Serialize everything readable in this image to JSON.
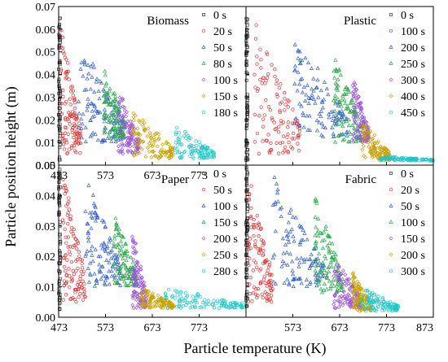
{
  "figure": {
    "xlabel": "Particle temperature (K)",
    "ylabel": "Particle position height (m)"
  },
  "series_colors": [
    "#333333",
    "#e0302f",
    "#2f5fd0",
    "#2aa84a",
    "#9b4fe0",
    "#c8a000",
    "#1fc7c7"
  ],
  "chart_data": [
    {
      "type": "scatter",
      "title": "Biomass",
      "xlim": [
        473,
        873
      ],
      "ylim": [
        0,
        0.07
      ],
      "xticks": [
        473,
        573,
        673,
        773,
        873
      ],
      "xtick_labels": [
        "473",
        "573",
        "673",
        "773",
        ""
      ],
      "yticks": [
        0,
        0.01,
        0.02,
        0.03,
        0.04,
        0.05,
        0.06,
        0.07
      ],
      "ytick_labels": [
        "0.00",
        "0.01",
        "0.02",
        "0.03",
        "0.04",
        "0.05",
        "0.06",
        "0.07"
      ],
      "legend_position": "top-right",
      "series": [
        {
          "name": "0 s",
          "x_range": [
            473,
            477
          ],
          "y_range": [
            0.002,
            0.065
          ]
        },
        {
          "name": "20 s",
          "x_range": [
            477,
            520
          ],
          "y_range": [
            0.005,
            0.062
          ]
        },
        {
          "name": "50 s",
          "x_range": [
            515,
            610
          ],
          "y_range": [
            0.01,
            0.058
          ]
        },
        {
          "name": "80 s",
          "x_range": [
            570,
            615
          ],
          "y_range": [
            0.012,
            0.045
          ]
        },
        {
          "name": "100 s",
          "x_range": [
            600,
            645
          ],
          "y_range": [
            0.005,
            0.035
          ]
        },
        {
          "name": "150 s",
          "x_range": [
            630,
            720
          ],
          "y_range": [
            0.003,
            0.025
          ]
        },
        {
          "name": "180 s",
          "x_range": [
            720,
            805
          ],
          "y_range": [
            0.003,
            0.018
          ]
        }
      ]
    },
    {
      "type": "scatter",
      "title": "Plastic",
      "xlim": [
        473,
        873
      ],
      "ylim": [
        0,
        0.07
      ],
      "xticks": [
        473,
        573,
        673,
        773,
        873
      ],
      "xtick_labels": [
        "",
        "",
        "",
        "",
        ""
      ],
      "yticks": [
        0,
        0.01,
        0.02,
        0.03,
        0.04,
        0.05,
        0.06,
        0.07
      ],
      "ytick_labels": [
        "",
        "",
        "",
        "",
        "",
        "",
        "",
        ""
      ],
      "legend_position": "top-right",
      "series": [
        {
          "name": "0 s",
          "x_range": [
            473,
            477
          ],
          "y_range": [
            0.002,
            0.065
          ]
        },
        {
          "name": "100 s",
          "x_range": [
            490,
            590
          ],
          "y_range": [
            0.005,
            0.065
          ]
        },
        {
          "name": "200 s",
          "x_range": [
            575,
            690
          ],
          "y_range": [
            0.012,
            0.06
          ]
        },
        {
          "name": "250 s",
          "x_range": [
            660,
            720
          ],
          "y_range": [
            0.01,
            0.05
          ]
        },
        {
          "name": "300 s",
          "x_range": [
            700,
            735
          ],
          "y_range": [
            0.01,
            0.04
          ]
        },
        {
          "name": "400 s",
          "x_range": [
            720,
            780
          ],
          "y_range": [
            0.002,
            0.02
          ]
        },
        {
          "name": "450 s",
          "x_range": [
            760,
            873
          ],
          "y_range": [
            0.002,
            0.004
          ]
        }
      ]
    },
    {
      "type": "scatter",
      "title": "Paper",
      "xlim": [
        473,
        873
      ],
      "ylim": [
        0,
        0.05
      ],
      "xticks": [
        473,
        573,
        673,
        773,
        873
      ],
      "xtick_labels": [
        "473",
        "573",
        "673",
        "773",
        ""
      ],
      "yticks": [
        0,
        0.01,
        0.02,
        0.03,
        0.04,
        0.05
      ],
      "ytick_labels": [
        "0.00",
        "0.01",
        "0.02",
        "0.03",
        "0.04",
        "0.05"
      ],
      "legend_position": "top-right",
      "series": [
        {
          "name": "0 s",
          "x_range": [
            473,
            477
          ],
          "y_range": [
            0.002,
            0.05
          ]
        },
        {
          "name": "50 s",
          "x_range": [
            480,
            530
          ],
          "y_range": [
            0.005,
            0.05
          ]
        },
        {
          "name": "100 s",
          "x_range": [
            530,
            605
          ],
          "y_range": [
            0.01,
            0.047
          ]
        },
        {
          "name": "150 s",
          "x_range": [
            590,
            640
          ],
          "y_range": [
            0.01,
            0.035
          ]
        },
        {
          "name": "200 s",
          "x_range": [
            630,
            660
          ],
          "y_range": [
            0.003,
            0.03
          ]
        },
        {
          "name": "250 s",
          "x_range": [
            650,
            720
          ],
          "y_range": [
            0.003,
            0.01
          ]
        },
        {
          "name": "280 s",
          "x_range": [
            700,
            873
          ],
          "y_range": [
            0.003,
            0.01
          ]
        }
      ]
    },
    {
      "type": "scatter",
      "title": "Fabric",
      "xlim": [
        473,
        873
      ],
      "ylim": [
        0,
        0.05
      ],
      "xticks": [
        473,
        573,
        673,
        773,
        873
      ],
      "xtick_labels": [
        "",
        "573",
        "673",
        "773",
        "873"
      ],
      "yticks": [
        0,
        0.01,
        0.02,
        0.03,
        0.04,
        0.05
      ],
      "ytick_labels": [
        "",
        "",
        "",
        "",
        "",
        ""
      ],
      "legend_position": "top-right",
      "series": [
        {
          "name": "0 s",
          "x_range": [
            473,
            477
          ],
          "y_range": [
            0.002,
            0.05
          ]
        },
        {
          "name": "20 s",
          "x_range": [
            477,
            530
          ],
          "y_range": [
            0.005,
            0.048
          ]
        },
        {
          "name": "50 s",
          "x_range": [
            530,
            640
          ],
          "y_range": [
            0.01,
            0.047
          ]
        },
        {
          "name": "100 s",
          "x_range": [
            620,
            680
          ],
          "y_range": [
            0.008,
            0.04
          ]
        },
        {
          "name": "150 s",
          "x_range": [
            660,
            720
          ],
          "y_range": [
            0.003,
            0.02
          ]
        },
        {
          "name": "200 s",
          "x_range": [
            700,
            740
          ],
          "y_range": [
            0.002,
            0.015
          ]
        },
        {
          "name": "300 s",
          "x_range": [
            720,
            800
          ],
          "y_range": [
            0.002,
            0.01
          ]
        }
      ]
    }
  ]
}
